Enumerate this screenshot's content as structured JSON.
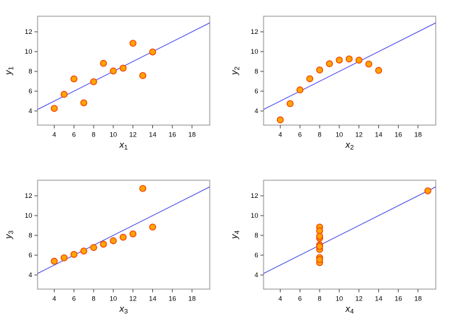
{
  "figure": {
    "background": "#ffffff",
    "layout": "2x2-grid"
  },
  "style": {
    "point_fill": "#ffa500",
    "point_stroke": "#f23d00",
    "line_color": "#4040e8",
    "box_color": "#888888",
    "tick_color": "#444444",
    "text_color": "#000000",
    "point_radius": 4.3,
    "point_stroke_width": 1.2,
    "line_width": 1
  },
  "chart_data": [
    {
      "type": "scatter",
      "title": "",
      "xlabel": {
        "base": "x",
        "sub": "1"
      },
      "ylabel": {
        "base": "y",
        "sub": "1"
      },
      "x": [
        10,
        8,
        13,
        9,
        11,
        14,
        6,
        4,
        12,
        7,
        5
      ],
      "y": [
        8.04,
        6.95,
        7.58,
        8.81,
        8.33,
        9.96,
        7.24,
        4.26,
        10.84,
        4.82,
        5.68
      ],
      "x_ticks": [
        4,
        6,
        8,
        10,
        12,
        14,
        16,
        18
      ],
      "y_ticks": [
        4,
        6,
        8,
        10,
        12
      ],
      "xlim": [
        2.3,
        19.8
      ],
      "ylim": [
        2.57,
        13.57
      ],
      "grid": false,
      "legend": "none",
      "regression_line": {
        "intercept": 3,
        "slope": 0.5
      }
    },
    {
      "type": "scatter",
      "title": "",
      "xlabel": {
        "base": "x",
        "sub": "2"
      },
      "ylabel": {
        "base": "y",
        "sub": "2"
      },
      "x": [
        10,
        8,
        13,
        9,
        11,
        14,
        6,
        4,
        12,
        7,
        5
      ],
      "y": [
        9.14,
        8.14,
        8.74,
        8.77,
        9.26,
        8.1,
        6.13,
        3.1,
        9.13,
        7.26,
        4.74
      ],
      "x_ticks": [
        4,
        6,
        8,
        10,
        12,
        14,
        16,
        18
      ],
      "y_ticks": [
        4,
        6,
        8,
        10,
        12
      ],
      "xlim": [
        2.3,
        19.8
      ],
      "ylim": [
        2.57,
        13.57
      ],
      "grid": false,
      "legend": "none",
      "regression_line": {
        "intercept": 3,
        "slope": 0.5
      }
    },
    {
      "type": "scatter",
      "title": "",
      "xlabel": {
        "base": "x",
        "sub": "3"
      },
      "ylabel": {
        "base": "y",
        "sub": "3"
      },
      "x": [
        10,
        8,
        13,
        9,
        11,
        14,
        6,
        4,
        12,
        7,
        5
      ],
      "y": [
        7.46,
        6.77,
        12.74,
        7.11,
        7.81,
        8.84,
        6.08,
        5.39,
        8.15,
        6.42,
        5.73
      ],
      "x_ticks": [
        4,
        6,
        8,
        10,
        12,
        14,
        16,
        18
      ],
      "y_ticks": [
        4,
        6,
        8,
        10,
        12
      ],
      "xlim": [
        2.3,
        19.8
      ],
      "ylim": [
        2.57,
        13.57
      ],
      "grid": false,
      "legend": "none",
      "regression_line": {
        "intercept": 3,
        "slope": 0.5
      }
    },
    {
      "type": "scatter",
      "title": "",
      "xlabel": {
        "base": "x",
        "sub": "4"
      },
      "ylabel": {
        "base": "y",
        "sub": "4"
      },
      "x": [
        8,
        8,
        8,
        8,
        8,
        8,
        8,
        19,
        8,
        8,
        8
      ],
      "y": [
        6.58,
        5.76,
        7.71,
        8.84,
        8.47,
        7.04,
        5.25,
        12.5,
        5.56,
        7.91,
        6.89
      ],
      "x_ticks": [
        4,
        6,
        8,
        10,
        12,
        14,
        16,
        18
      ],
      "y_ticks": [
        4,
        6,
        8,
        10,
        12
      ],
      "xlim": [
        2.3,
        19.8
      ],
      "ylim": [
        2.57,
        13.57
      ],
      "grid": false,
      "legend": "none",
      "regression_line": {
        "intercept": 3,
        "slope": 0.5
      }
    }
  ]
}
